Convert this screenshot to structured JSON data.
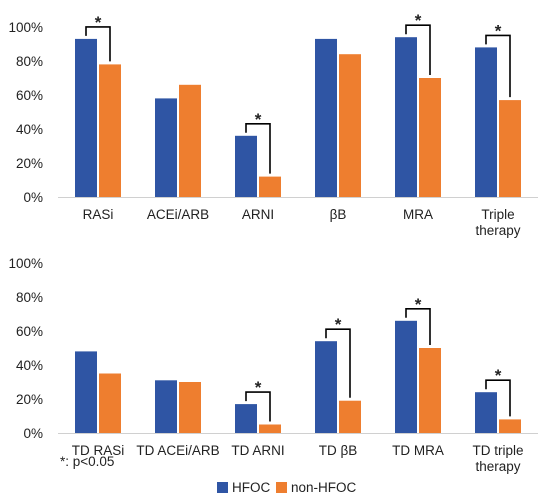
{
  "chart_data": [
    {
      "type": "bar",
      "categories": [
        "RASi",
        "ACEi/ARB",
        "ARNI",
        "βB",
        "MRA",
        "Triple therapy"
      ],
      "series": [
        {
          "name": "HFOC",
          "values": [
            93,
            58,
            36,
            93,
            94,
            88
          ]
        },
        {
          "name": "non-HFOC",
          "values": [
            78,
            66,
            12,
            84,
            70,
            57
          ]
        }
      ],
      "significant": [
        true,
        false,
        true,
        false,
        true,
        true
      ],
      "ylim": [
        0,
        100
      ],
      "yticks": [
        "0%",
        "20%",
        "40%",
        "60%",
        "80%",
        "100%"
      ],
      "ytick_values": [
        0,
        20,
        40,
        60,
        80,
        100
      ],
      "grid": false
    },
    {
      "type": "bar",
      "categories": [
        "TD RASi",
        "TD ACEi/ARB",
        "TD ARNI",
        "TD βB",
        "TD MRA",
        "TD triple therapy"
      ],
      "series": [
        {
          "name": "HFOC",
          "values": [
            48,
            31,
            17,
            54,
            66,
            24
          ]
        },
        {
          "name": "non-HFOC",
          "values": [
            35,
            30,
            5,
            19,
            50,
            8
          ]
        }
      ],
      "significant": [
        false,
        false,
        true,
        true,
        true,
        true
      ],
      "ylim": [
        0,
        100
      ],
      "yticks": [
        "0%",
        "20%",
        "40%",
        "60%",
        "80%",
        "100%"
      ],
      "ytick_values": [
        0,
        20,
        40,
        60,
        80,
        100
      ],
      "grid": false
    }
  ],
  "significance_marker": "*",
  "footnote": "*: p<0.05",
  "legend": {
    "placement": "bottom",
    "items": [
      {
        "label": "HFOC",
        "color": "#2f55a4"
      },
      {
        "label": "non-HFOC",
        "color": "#ee7e2f"
      }
    ]
  },
  "colors": {
    "HFOC": "#2f55a4",
    "non-HFOC": "#ee7e2f",
    "axis": "#d0d0d0",
    "bracket": "#000000"
  }
}
